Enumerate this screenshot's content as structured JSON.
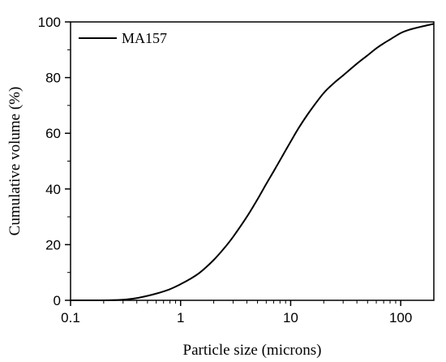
{
  "chart_data": {
    "type": "line",
    "x_scale": "log",
    "xlabel": "Particle size (microns)",
    "ylabel": "Cumulative volume (%)",
    "xlim": [
      0.1,
      200
    ],
    "ylim": [
      0,
      100
    ],
    "x_ticks": [
      0.1,
      1,
      10,
      100
    ],
    "x_tick_labels": [
      "0.1",
      "1",
      "10",
      "100"
    ],
    "y_ticks": [
      0,
      20,
      40,
      60,
      80,
      100
    ],
    "y_tick_labels": [
      "0",
      "20",
      "40",
      "60",
      "80",
      "100"
    ],
    "grid": false,
    "legend_position": "top-left",
    "series": [
      {
        "name": "MA157",
        "color": "#000000",
        "x": [
          0.1,
          0.2,
          0.3,
          0.4,
          0.5,
          0.6,
          0.7,
          0.8,
          0.9,
          1,
          1.2,
          1.5,
          2,
          2.5,
          3,
          4,
          5,
          6,
          7,
          8,
          10,
          12,
          15,
          20,
          25,
          30,
          40,
          50,
          60,
          70,
          80,
          100,
          120,
          150,
          200
        ],
        "y": [
          0,
          0,
          0.2,
          0.8,
          1.6,
          2.4,
          3.2,
          4.0,
          4.9,
          5.8,
          7.5,
          10.0,
          14.5,
          18.8,
          22.8,
          30.0,
          36.3,
          41.8,
          46.3,
          50.3,
          57.0,
          62.3,
          68.0,
          74.5,
          78.2,
          80.8,
          85.0,
          88.0,
          90.5,
          92.3,
          93.7,
          96.0,
          97.2,
          98.2,
          99.3
        ]
      }
    ]
  }
}
